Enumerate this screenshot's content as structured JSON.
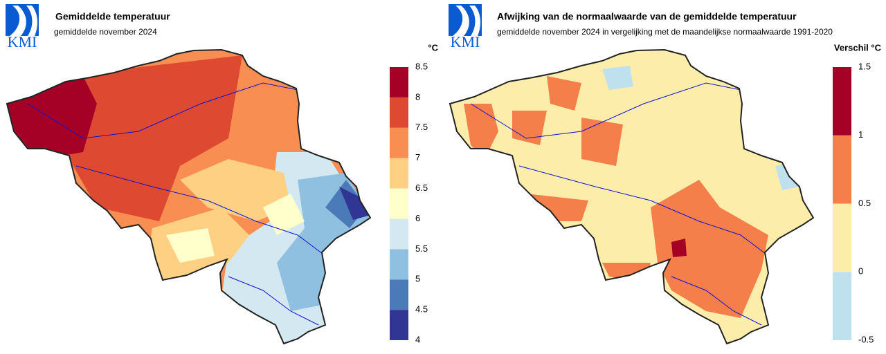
{
  "maps": [
    {
      "logo": "KMI",
      "title": "Gemiddelde temperatuur",
      "subtitle": "gemiddelde november 2024",
      "legend": {
        "unit": "°C",
        "ticks": [
          4,
          4.5,
          5,
          5.5,
          6,
          6.5,
          7,
          7.5,
          8,
          8.5
        ],
        "colors": [
          "#313695",
          "#4a7ab8",
          "#8fc0df",
          "#d4e8f2",
          "#ffffcc",
          "#fdd083",
          "#f98e52",
          "#dd4a31",
          "#a50026"
        ]
      }
    },
    {
      "logo": "KMI",
      "title": "Afwijking van de normaalwaarde van de gemiddelde temperatuur",
      "subtitle": "gemiddelde november 2024 in vergelijking met de maandelijkse normaalwaarde 1991-2020",
      "legend": {
        "unit": "Verschil °C",
        "ticks": [
          -0.5,
          0,
          0.5,
          1,
          1.5
        ],
        "colors": [
          "#bfe1ee",
          "#fdedaa",
          "#f47f4a",
          "#a50026"
        ]
      }
    }
  ]
}
